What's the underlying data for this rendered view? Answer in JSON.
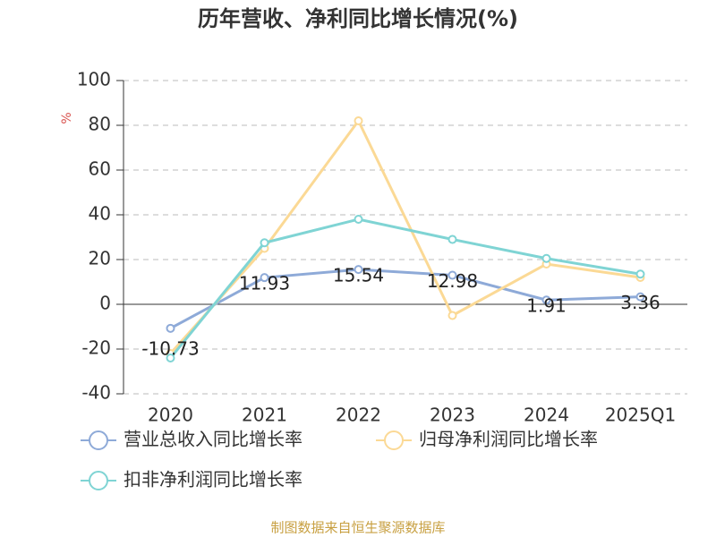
{
  "chart_data": {
    "type": "line",
    "title": "历年营收、净利同比增长情况(%)",
    "y_label": "%",
    "categories": [
      "2020",
      "2021",
      "2022",
      "2023",
      "2024",
      "2025Q1"
    ],
    "series": [
      {
        "name": "营业总收入同比增长率",
        "color": "#8eaad8",
        "values": [
          -10.73,
          11.93,
          15.54,
          12.98,
          1.91,
          3.36
        ],
        "data_labels": true
      },
      {
        "name": "归母净利润同比增长率",
        "color": "#fbd995",
        "values": [
          -22,
          25,
          82,
          -5,
          18,
          12
        ]
      },
      {
        "name": "扣非净利润同比增长率",
        "color": "#7fd4d4",
        "values": [
          -24,
          27.5,
          38,
          29,
          20.5,
          13.5
        ]
      }
    ],
    "ylim": [
      -40,
      100
    ],
    "yticks": [
      -40,
      -20,
      0,
      20,
      40,
      60,
      80,
      100
    ],
    "grid": true,
    "source": "制图数据来自恒生聚源数据库"
  }
}
